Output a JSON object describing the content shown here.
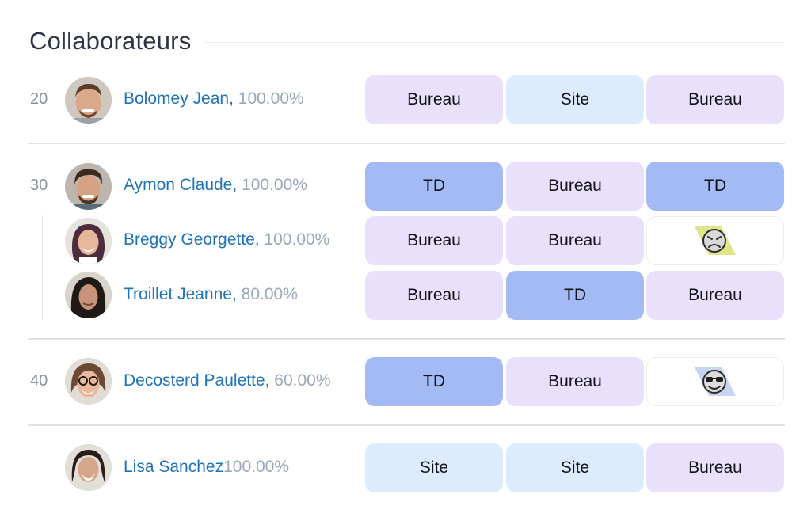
{
  "title": "Collaborateurs",
  "colors": {
    "bureau": "#e9e1fb",
    "site": "#dcebfd",
    "td": "#a3baf5",
    "name": "#1f73b7",
    "percent": "#9aa7ba"
  },
  "groups": [
    {
      "number": "20",
      "members": [
        {
          "name": "Bolomey Jean,",
          "percent": "100.00%",
          "days": [
            "Bureau",
            "Site",
            "Bureau"
          ]
        }
      ]
    },
    {
      "number": "30",
      "members": [
        {
          "name": "Aymon Claude,",
          "percent": "100.00%",
          "days": [
            "TD",
            "Bureau",
            "TD"
          ]
        },
        {
          "name": "Breggy Georgette,",
          "percent": "100.00%",
          "days": [
            "Bureau",
            "Bureau",
            ""
          ],
          "status_icon": "sad-face-icon"
        },
        {
          "name": "Troillet Jeanne,",
          "percent": "80.00%",
          "days": [
            "Bureau",
            "TD",
            "Bureau"
          ]
        }
      ]
    },
    {
      "number": "40",
      "members": [
        {
          "name": "Decosterd Paulette,",
          "percent": "60.00%",
          "days": [
            "TD",
            "Bureau",
            ""
          ],
          "status_icon": "sunglasses-face-icon"
        }
      ]
    },
    {
      "number": "",
      "members": [
        {
          "name": "Lisa Sanchez",
          "percent": "100.00%",
          "days": [
            "Site",
            "Site",
            "Bureau"
          ]
        }
      ]
    }
  ]
}
